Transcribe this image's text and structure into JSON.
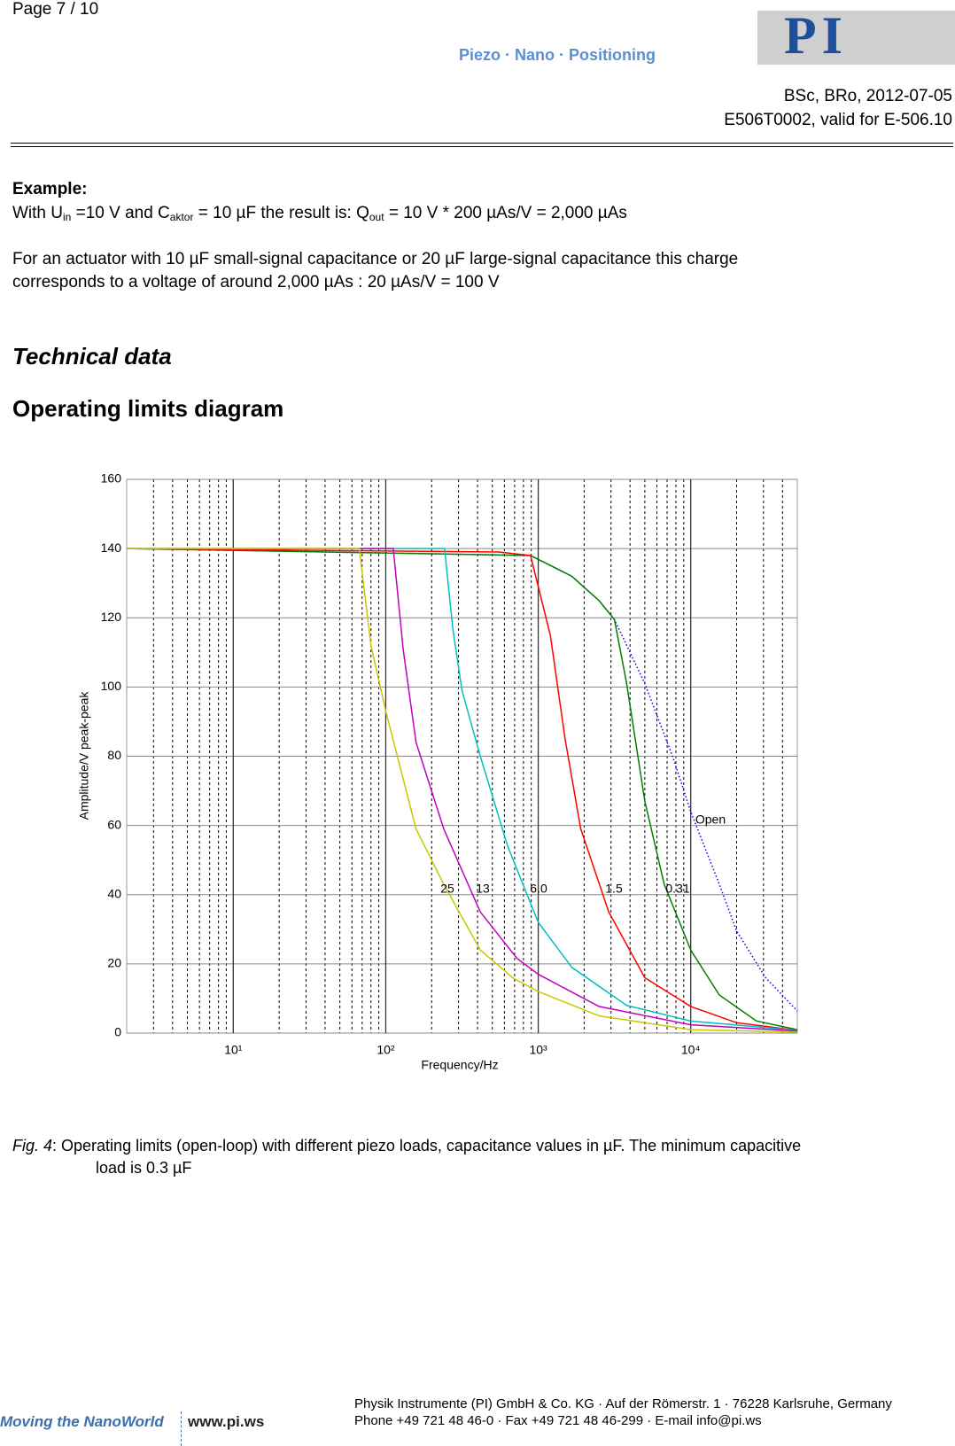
{
  "header": {
    "page": "Page 7 / 10",
    "logo_tagline": "Piezo · Nano · Positioning",
    "logo_mark": "PI",
    "authors": "BSc, BRo, 2012-07-05",
    "document": "E506T0002, valid for E-506.10"
  },
  "example": {
    "heading": "Example:",
    "formula_runs": [
      "With U",
      "in",
      " =10 V and C",
      "aktor",
      " = 10 µF the result is: Q",
      "out",
      " = 10 V * 200 µAs/V = 2,000 µAs"
    ],
    "paragraph": [
      "For an actuator with 10 µF small-signal capacitance or 20 µF large-signal capacitance this charge",
      "corresponds to  a voltage of around 2,000 µAs : 20 µAs/V = 100 V"
    ]
  },
  "section": "Technical data",
  "subsection": "Operating limits diagram",
  "chart_data": {
    "type": "line",
    "x_label": "Frequency/Hz",
    "y_label": "Amplitude/V peak-peak",
    "xscale": "log",
    "xlim": [
      2,
      50000
    ],
    "ylim": [
      0,
      160
    ],
    "xticks": [
      {
        "value": 10,
        "label": "10¹"
      },
      {
        "value": 100,
        "label": "10²"
      },
      {
        "value": 1000,
        "label": "10³"
      },
      {
        "value": 10000,
        "label": "10⁴"
      }
    ],
    "xminorticks": [
      3,
      4,
      5,
      6,
      7,
      8,
      9,
      20,
      30,
      40,
      50,
      60,
      70,
      80,
      90,
      200,
      300,
      400,
      500,
      600,
      700,
      800,
      900,
      2000,
      3000,
      4000,
      5000,
      6000,
      7000,
      8000,
      9000,
      20000,
      30000,
      40000
    ],
    "yticks": [
      0,
      20,
      40,
      60,
      80,
      100,
      120,
      140,
      160
    ],
    "grid": true,
    "series": [
      {
        "name": "25",
        "color": "#c8c800",
        "x": [
          2,
          67,
          80,
          100,
          158,
          240,
          417,
          680,
          1000,
          2500,
          10000,
          50000
        ],
        "values": [
          140,
          140,
          112,
          93,
          59,
          43,
          24,
          16,
          12,
          5,
          1,
          0.3
        ]
      },
      {
        "name": "13",
        "color": "#c000c0",
        "x": [
          2,
          112,
          130,
          158,
          240,
          417,
          725,
          1000,
          2500,
          10000,
          50000
        ],
        "values": [
          140,
          140,
          111,
          84,
          59,
          35,
          21.6,
          17,
          7.7,
          2.4,
          0.6
        ]
      },
      {
        "name": "6.0",
        "color": "#00c0c0",
        "x": [
          2,
          243,
          275,
          316,
          417,
          630,
          1000,
          1660,
          3800,
          10000,
          50000
        ],
        "values": [
          140,
          140,
          117,
          99,
          80,
          54,
          32,
          19,
          8,
          3.5,
          0.8
        ]
      },
      {
        "name": "1.5",
        "color": "#ff0000",
        "x": [
          2,
          550,
          890,
          1200,
          1500,
          1900,
          2900,
          5000,
          10000,
          20000,
          50000
        ],
        "values": [
          140,
          139,
          138,
          115,
          85,
          59,
          35,
          16,
          7.7,
          3,
          0.8
        ]
      },
      {
        "name": "0.31",
        "color": "#008000",
        "x": [
          2,
          890,
          1660,
          2500,
          3160,
          3800,
          5000,
          6700,
          10000,
          15400,
          27000,
          50000
        ],
        "values": [
          140,
          138,
          132,
          125,
          119.5,
          101,
          67,
          43,
          24,
          11,
          3.5,
          1
        ]
      },
      {
        "name": "Open",
        "color": "#0000ff",
        "style": "dotted",
        "x": [
          2,
          890,
          1660,
          2500,
          3160,
          5000,
          7600,
          10000,
          15400,
          20000,
          31000,
          50000
        ],
        "values": [
          140,
          138,
          132,
          125,
          119.5,
          101,
          80,
          64,
          43,
          29.5,
          16,
          6.4
        ]
      }
    ]
  },
  "caption": {
    "label": "Fig. 4",
    "text": ": Operating limits (open-loop) with different piezo loads, capacitance values in µF. The minimum capacitive",
    "text2": "load is 0.3 µF"
  },
  "footer": {
    "logo": "Moving the NanoWorld",
    "url": "www.pi.ws",
    "address": "Physik Instrumente (PI) GmbH & Co. KG · Auf der Römerstr. 1 · 76228 Karlsruhe, Germany",
    "contact": "Phone +49 721 48 46-0 · Fax +49 721 48 46-299 · E-mail info@pi.ws"
  }
}
